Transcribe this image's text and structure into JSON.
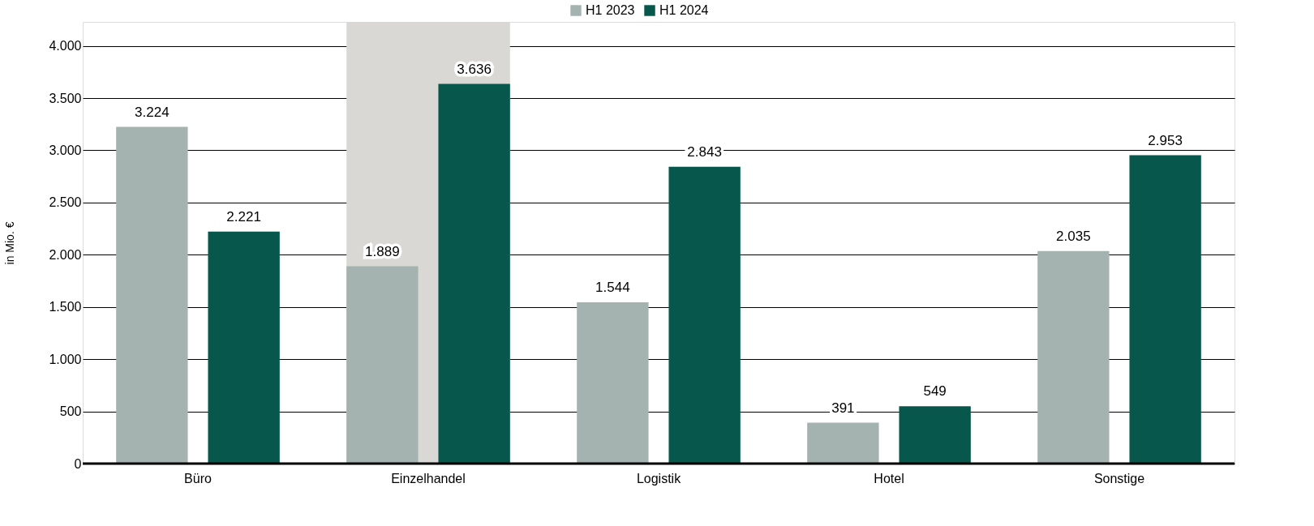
{
  "chart_data": {
    "type": "bar",
    "ylabel": "in Mio. €",
    "categories": [
      "Büro",
      "Einzelhandel",
      "Logistik",
      "Hotel",
      "Sonstige"
    ],
    "series": [
      {
        "name": "H1 2023",
        "color": "#a5b3b0",
        "values": [
          3224,
          1889,
          1544,
          391,
          2035
        ],
        "value_labels": [
          "3.224",
          "1.889",
          "1.544",
          "391",
          "2.035"
        ]
      },
      {
        "name": "H1 2024",
        "color": "#07574c",
        "values": [
          2221,
          3636,
          2843,
          549,
          2953
        ],
        "value_labels": [
          "2.221",
          "3.636",
          "2.843",
          "549",
          "2.953"
        ]
      }
    ],
    "ylim": [
      0,
      4230
    ],
    "yticks": [
      {
        "value": 0,
        "label": "0"
      },
      {
        "value": 500,
        "label": "500"
      },
      {
        "value": 1000,
        "label": "1.000"
      },
      {
        "value": 1500,
        "label": "1.500"
      },
      {
        "value": 2000,
        "label": "2.000"
      },
      {
        "value": 2500,
        "label": "2.500"
      },
      {
        "value": 3000,
        "label": "3.000"
      },
      {
        "value": 3500,
        "label": "3.500"
      },
      {
        "value": 4000,
        "label": "4.000"
      }
    ],
    "bands": [
      {
        "axis": "x",
        "from": "Einzelhandel",
        "to": "Einzelhandel",
        "color": "#d9d8d4"
      }
    ],
    "grid": "y",
    "legend": "top"
  }
}
